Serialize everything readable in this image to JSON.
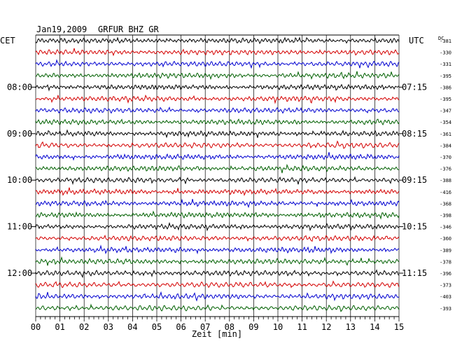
{
  "header": {
    "date": "Jan19,2009",
    "station": "GRFUR BHZ GR",
    "left_tz": "CET",
    "right_tz": "UTC",
    "dc_label": "DC"
  },
  "colors": {
    "trace_cycle": [
      "#000000",
      "#d40000",
      "#0000d0",
      "#006000"
    ],
    "grid": "#000000",
    "dc_text": "#000000"
  },
  "chart_data": {
    "type": "line",
    "title": "Jan19,2009   GRFUR BHZ GR",
    "xlabel": "Zeit [min]",
    "xlim": [
      0,
      15
    ],
    "x_ticks": [
      "00",
      "01",
      "02",
      "03",
      "04",
      "05",
      "06",
      "07",
      "08",
      "09",
      "10",
      "11",
      "12",
      "13",
      "14",
      "15"
    ],
    "left_time_labels": [
      {
        "row": 4,
        "label": "08:00"
      },
      {
        "row": 8,
        "label": "09:00"
      },
      {
        "row": 12,
        "label": "10:00"
      },
      {
        "row": 16,
        "label": "11:00"
      },
      {
        "row": 20,
        "label": "12:00"
      }
    ],
    "right_time_labels": [
      {
        "row": 0,
        "label": "UTC"
      },
      {
        "row": 4,
        "label": "07:15"
      },
      {
        "row": 8,
        "label": "08:15"
      },
      {
        "row": 12,
        "label": "09:15"
      },
      {
        "row": 16,
        "label": "10:15"
      },
      {
        "row": 20,
        "label": "11:15"
      }
    ],
    "dc_offsets": [
      "-381",
      "-330",
      "-331",
      "-395",
      "-386",
      "-395",
      "-347",
      "-354",
      "-361",
      "-384",
      "-370",
      "-376",
      "-388",
      "-416",
      "-368",
      "-398",
      "-346",
      "-360",
      "-389",
      "-378",
      "-396",
      "-373",
      "-403",
      "-393"
    ],
    "grid": true
  }
}
